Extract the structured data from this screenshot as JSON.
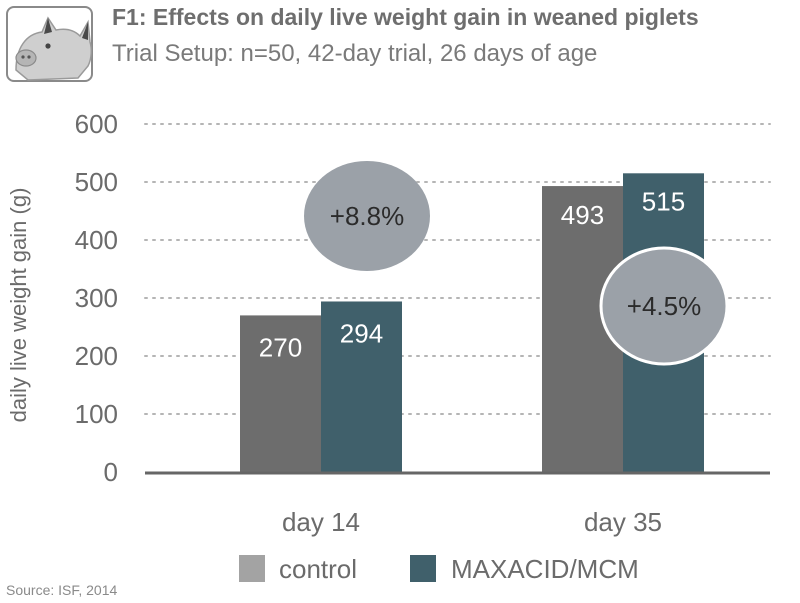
{
  "header": {
    "logo_icon": "pig-icon",
    "title": "F1: Effects on daily live weight gain in weaned piglets",
    "subtitle": "Trial Setup:  n=50, 42-day trial, 26 days of age"
  },
  "chart_data": {
    "type": "bar",
    "title": "F1: Effects on daily live weight gain in weaned piglets",
    "xlabel": "",
    "ylabel": "daily live weight gain (g)",
    "ylim": [
      0,
      600
    ],
    "yticks": [
      0,
      100,
      200,
      300,
      400,
      500,
      600
    ],
    "ytick_labels": [
      "0",
      "100",
      "200",
      "300",
      "400",
      "500",
      "600"
    ],
    "categories": [
      "day 14",
      "day 35"
    ],
    "grid": "horizontal dotted",
    "legend_position": "bottom",
    "series": [
      {
        "name": "control",
        "values": [
          270,
          493
        ],
        "labels": [
          "270",
          "493"
        ],
        "color": "#6d6d6d"
      },
      {
        "name": "MAXACID/MCM",
        "values": [
          294,
          515
        ],
        "labels": [
          "294",
          "515"
        ],
        "color": "#40606b"
      }
    ],
    "annotations": [
      {
        "text": "+8.8%",
        "category": "day 14",
        "style": "bubble"
      },
      {
        "text": "+4.5%",
        "category": "day 35",
        "style": "bubble-outlined"
      }
    ]
  },
  "footer": {
    "source": "Source: ISF, 2014"
  },
  "colors": {
    "control": "#6d6d6d",
    "treatment": "#40606b",
    "bubble": "#9ba1a8",
    "text": "#6b6b6b"
  }
}
